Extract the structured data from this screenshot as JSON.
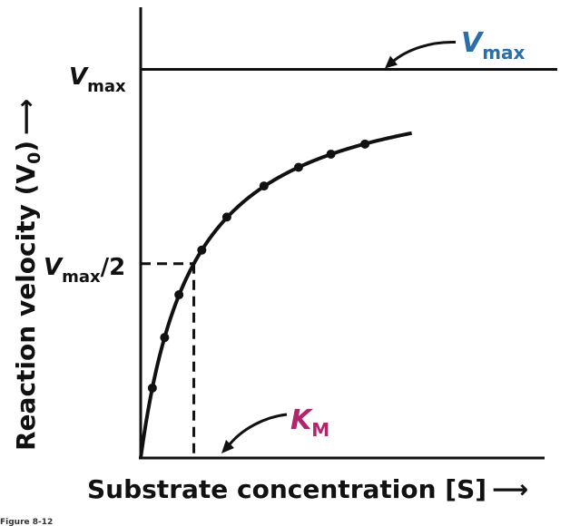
{
  "chart_data": {
    "type": "line",
    "ylabel_main": "Reaction velocity (V",
    "ylabel_sub": "0",
    "ylabel_tail": ")",
    "ylabel_arrow": "⟶",
    "xlabel": "Substrate concentration [S]",
    "xlabel_arrow": "⟶",
    "figure_caption": "Figure 8-12",
    "vmax": 1.0,
    "km": 1.0,
    "xlim": [
      0,
      7.6
    ],
    "ylim": [
      0,
      1.16
    ],
    "tick_labels": {
      "vmax_main": "V",
      "vmax_sub": "max",
      "half_main": "V",
      "half_sub": "max",
      "half_tail": "/2"
    },
    "annotations": {
      "vmax_line_label_main": "V",
      "vmax_line_label_sub": "max",
      "km_label_main": "K",
      "km_label_sub": "M"
    },
    "points": [
      {
        "x": 0.22,
        "y": 0.18
      },
      {
        "x": 0.45,
        "y": 0.31
      },
      {
        "x": 0.72,
        "y": 0.42
      },
      {
        "x": 1.15,
        "y": 0.535
      },
      {
        "x": 1.62,
        "y": 0.62
      },
      {
        "x": 2.32,
        "y": 0.7
      },
      {
        "x": 2.97,
        "y": 0.748
      },
      {
        "x": 3.58,
        "y": 0.782
      },
      {
        "x": 4.22,
        "y": 0.808
      }
    ],
    "curve_x_max": 5.1,
    "colors": {
      "vmax_label": "#2b6ea8",
      "km_label": "#b0256b",
      "ink": "#111111"
    }
  }
}
